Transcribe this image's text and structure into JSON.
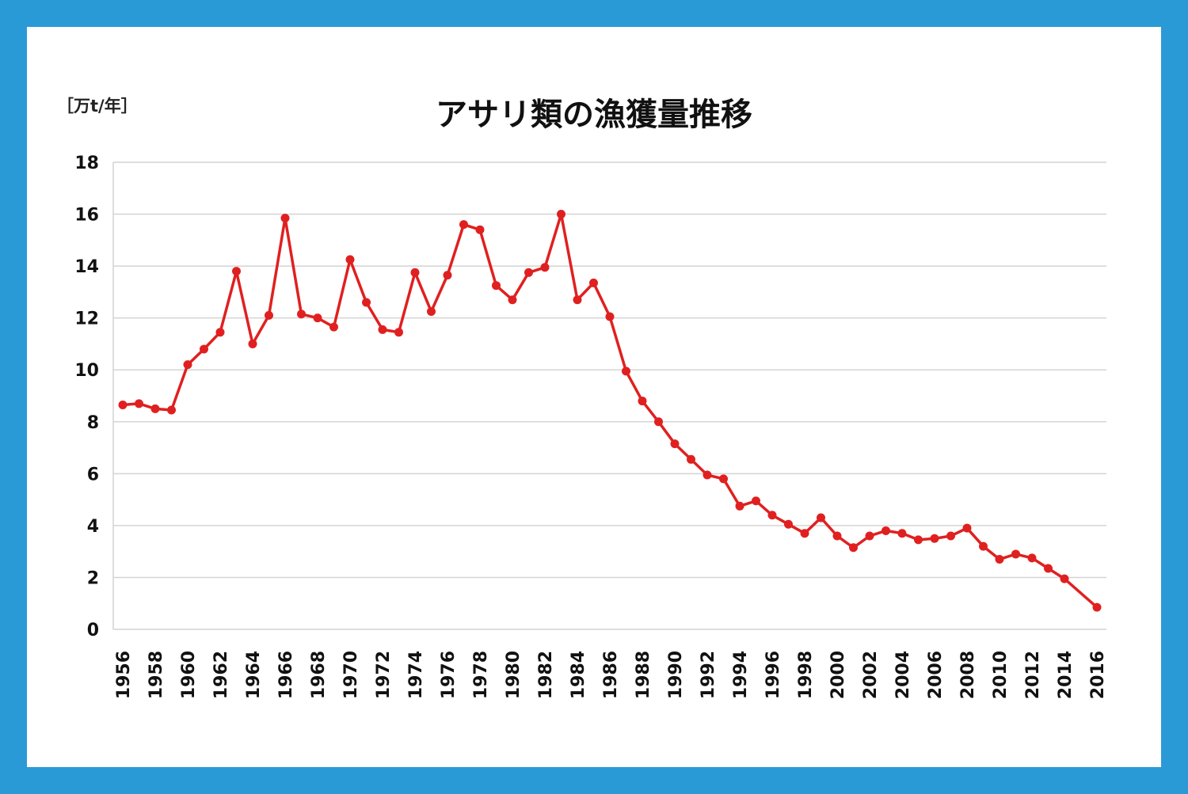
{
  "colors": {
    "background": "#2a9ad6",
    "card": "#ffffff",
    "line": "#e02020",
    "grid": "#d4d4d4"
  },
  "chart_data": {
    "type": "line",
    "title": "アサリ類の漁獲量推移",
    "ylabel": "［万t/年］",
    "xlabel": "",
    "ylim": [
      0,
      18
    ],
    "yticks": [
      0,
      2,
      4,
      6,
      8,
      10,
      12,
      14,
      16,
      18
    ],
    "xlim": [
      1956,
      2016
    ],
    "xticks": [
      1956,
      1958,
      1960,
      1962,
      1964,
      1966,
      1968,
      1970,
      1972,
      1974,
      1976,
      1978,
      1980,
      1982,
      1984,
      1986,
      1988,
      1990,
      1992,
      1994,
      1996,
      1998,
      2000,
      2002,
      2004,
      2006,
      2008,
      2010,
      2012,
      2014,
      2016
    ],
    "grid": true,
    "legend": "none",
    "series": [
      {
        "x": [
          1956,
          1957,
          1958,
          1959,
          1960,
          1961,
          1962,
          1963,
          1964,
          1965,
          1966,
          1967,
          1968,
          1969,
          1970,
          1971,
          1972,
          1973,
          1974,
          1975,
          1976,
          1977,
          1978,
          1979,
          1980,
          1981,
          1982,
          1983,
          1984,
          1985,
          1986,
          1987,
          1988,
          1989,
          1990,
          1991,
          1992,
          1993,
          1994,
          1995,
          1996,
          1997,
          1998,
          1999,
          2000,
          2001,
          2002,
          2003,
          2004,
          2005,
          2006,
          2007,
          2008,
          2009,
          2010,
          2011,
          2012,
          2013,
          2014,
          2016
        ],
        "values": [
          8.65,
          8.7,
          8.5,
          8.45,
          10.2,
          10.8,
          11.45,
          13.8,
          11.0,
          12.1,
          15.85,
          12.15,
          12.0,
          11.65,
          14.25,
          12.6,
          11.55,
          11.45,
          13.75,
          12.25,
          13.65,
          15.6,
          15.4,
          13.25,
          12.7,
          13.75,
          13.95,
          16.0,
          12.7,
          13.35,
          12.05,
          9.95,
          8.8,
          8.0,
          7.15,
          6.55,
          5.95,
          5.8,
          4.75,
          4.95,
          4.4,
          4.05,
          3.7,
          4.3,
          3.6,
          3.15,
          3.6,
          3.8,
          3.7,
          3.45,
          3.5,
          3.6,
          3.9,
          3.2,
          2.7,
          2.9,
          2.75,
          2.35,
          1.95,
          0.85
        ]
      }
    ]
  }
}
